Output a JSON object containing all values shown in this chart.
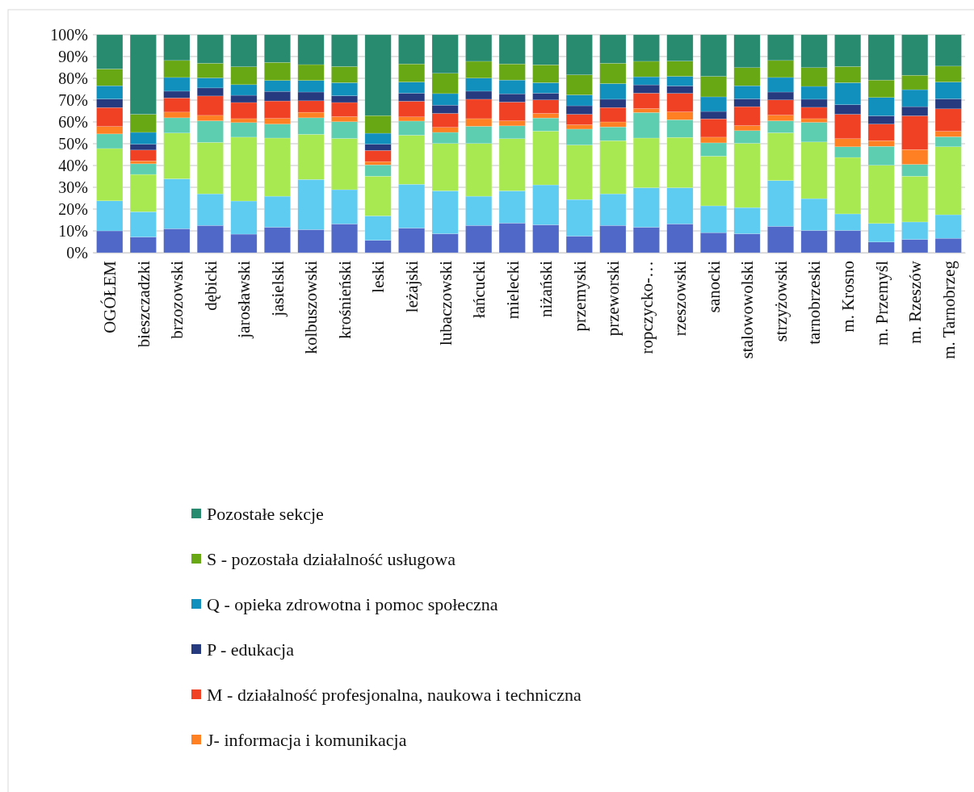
{
  "chart_data": {
    "type": "bar",
    "stacked": true,
    "grid": "y",
    "legend": "bottom",
    "categories": [
      "OGÓŁEM",
      "bieszczadzki",
      "brzozowski",
      "dębicki",
      "jarosławski",
      "jasielski",
      "kolbuszowski",
      "krośnieński",
      "leski",
      "leżajski",
      "lubaczowski",
      "łańcucki",
      "mielecki",
      "niżański",
      "przemyski",
      "przeworski",
      "ropczycko-…",
      "rzeszowski",
      "sanocki",
      "stalowowolski",
      "strzyżowski",
      "tarnobrzeski",
      "m. Krosno",
      "m. Przemyśl",
      "m. Rzeszów",
      "m. Tarnobrzeg"
    ],
    "ylim": [
      0,
      100
    ],
    "yticks": [
      {
        "value": 0,
        "label": "0%"
      },
      {
        "value": 10,
        "label": "10%"
      },
      {
        "value": 20,
        "label": "20%"
      },
      {
        "value": 30,
        "label": "30%"
      },
      {
        "value": 40,
        "label": "40%"
      },
      {
        "value": 50,
        "label": "50%"
      },
      {
        "value": 60,
        "label": "60%"
      },
      {
        "value": 70,
        "label": "70%"
      },
      {
        "value": 80,
        "label": "80%"
      },
      {
        "value": 90,
        "label": "90%"
      },
      {
        "value": 100,
        "label": "100%"
      }
    ],
    "series": [
      {
        "color": "#5068c8",
        "values": [
          10,
          7.2,
          11,
          12.5,
          8.5,
          11.7,
          10.6,
          13.2,
          5.7,
          11.3,
          8.7,
          12.5,
          13.6,
          12.8,
          7.6,
          12.5,
          11.7,
          13.2,
          9.2,
          8.7,
          12.1,
          10.2,
          10.2,
          4.9,
          6.1,
          6.6
        ]
      },
      {
        "color": "#5ecbf1",
        "values": [
          13.8,
          11.6,
          22.9,
          14.5,
          15.2,
          14.2,
          23,
          15.7,
          11.2,
          20.1,
          19.7,
          13.4,
          14.8,
          18.3,
          16.8,
          14.5,
          18.1,
          16.6,
          12.3,
          12,
          21,
          14.6,
          7.6,
          8.5,
          8,
          10.8
        ]
      },
      {
        "color": "#a8e952",
        "values": [
          24,
          17.1,
          21,
          23.6,
          29.3,
          26.7,
          20.7,
          23.5,
          18.2,
          22.5,
          21.7,
          24.2,
          23.9,
          24.7,
          25,
          24.4,
          22.8,
          23.1,
          22.8,
          29.5,
          21.9,
          26,
          25.9,
          26.7,
          21,
          31.2
        ]
      },
      {
        "color": "#5dcfb0",
        "values": [
          6.7,
          4.9,
          7,
          9.9,
          6.7,
          6.4,
          7.6,
          7.7,
          5.2,
          6.5,
          5.1,
          7.9,
          5.9,
          6,
          7.3,
          6.3,
          11.7,
          8.1,
          6.1,
          5.8,
          5.5,
          9,
          4.9,
          8.7,
          5.4,
          4.6
        ]
      },
      {
        "name": "J- informacja i komunikacja",
        "color": "#ff8022",
        "values": [
          3.4,
          1.3,
          2.6,
          2.5,
          1.8,
          2.6,
          2.5,
          2.3,
          1.5,
          1.9,
          2.3,
          3.5,
          2.3,
          2.1,
          2,
          2.3,
          1.8,
          3.6,
          2.6,
          2.3,
          2.6,
          1.7,
          3.7,
          2.6,
          6.8,
          2.5
        ]
      },
      {
        "name": "M - działalność profesjonalna, naukowa i techniczna",
        "color": "#f04124",
        "values": [
          8.7,
          5,
          6.5,
          8.9,
          7.4,
          8,
          5.3,
          6.5,
          5.1,
          7.2,
          6.4,
          8.9,
          8.6,
          6.2,
          4.8,
          6.6,
          7.1,
          8.5,
          8.4,
          8.7,
          7,
          5.2,
          11.2,
          7.6,
          15.5,
          10.3
        ]
      },
      {
        "name": "P - edukacja",
        "color": "#263a80",
        "values": [
          3.9,
          2.7,
          3.1,
          3.7,
          3.3,
          4.4,
          4,
          3.1,
          2.9,
          3.7,
          3.8,
          3.7,
          3.8,
          3.1,
          3.9,
          3.8,
          3.8,
          3.4,
          3.4,
          3.6,
          3.6,
          3.7,
          4.4,
          3.8,
          4.2,
          4.6
        ]
      },
      {
        "name": "Q - opieka zdrowotna i pomoc społeczna",
        "color": "#118fbd",
        "values": [
          6.1,
          5.4,
          6.3,
          4.6,
          4.9,
          5,
          5.3,
          6,
          5,
          5.1,
          5.3,
          6,
          6.3,
          4.8,
          5,
          7.2,
          3.7,
          4.4,
          6.7,
          6,
          6.7,
          5.9,
          10.1,
          8.4,
          7.8,
          7.7
        ]
      },
      {
        "name": "S - pozostała działalność usługowa",
        "color": "#67a814",
        "values": [
          7.7,
          8.3,
          7.8,
          6.7,
          8.2,
          8.3,
          7.3,
          7.4,
          8.1,
          8.3,
          9.3,
          7.7,
          7.4,
          8.2,
          9.2,
          9.3,
          7.1,
          7,
          9.4,
          8.3,
          7.8,
          8.6,
          7.4,
          8,
          6.6,
          7.3
        ]
      },
      {
        "name": "Pozostałe sekcje",
        "color": "#288a6e",
        "values": [
          15.7,
          36.5,
          11.8,
          13.1,
          14.7,
          12.7,
          13.7,
          14.6,
          37.1,
          13.4,
          17.7,
          12.2,
          13.4,
          13.8,
          18.4,
          13.1,
          12.2,
          12.1,
          19.1,
          15.1,
          11.8,
          15.1,
          14.6,
          20.8,
          18.6,
          14.4
        ]
      }
    ]
  }
}
